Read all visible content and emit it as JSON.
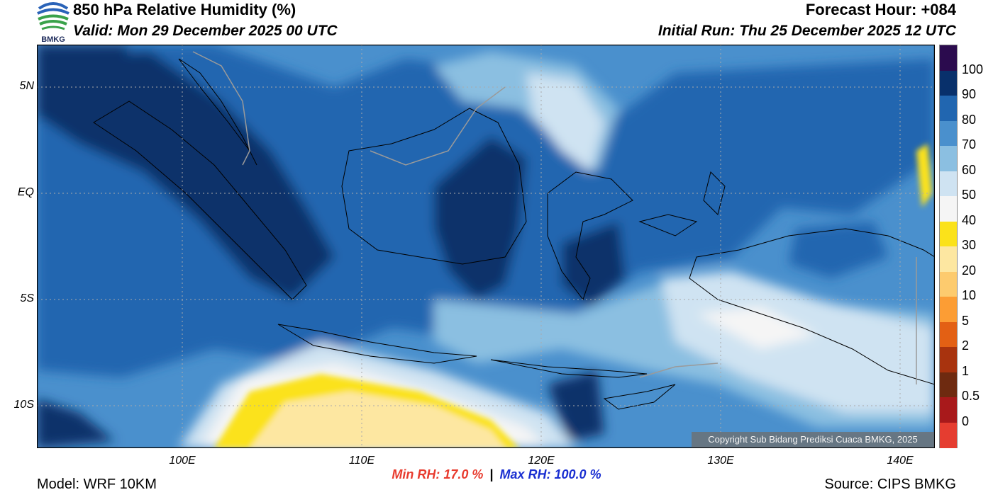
{
  "header": {
    "title": "850 hPa Relative Humidity (%)",
    "valid": "Valid: Mon 29 December 2025 00 UTC",
    "forecast_hour": "Forecast Hour: +084",
    "initial_run": "Initial Run: Thu 25 December 2025 12 UTC",
    "logo_text": "BMKG"
  },
  "map": {
    "lat_labels": [
      "5N",
      "EQ",
      "5S",
      "10S"
    ],
    "lon_labels": [
      "100E",
      "110E",
      "120E",
      "130E",
      "140E"
    ],
    "lat_values": [
      5,
      0,
      -5,
      -10
    ],
    "lon_values": [
      100,
      110,
      120,
      130,
      140
    ],
    "lon_range": [
      92,
      142
    ],
    "lat_range": [
      -12,
      7
    ],
    "copyright": "Copyright Sub Bidang Prediksi Cuaca BMKG, 2025"
  },
  "legend": {
    "labels": [
      "100",
      "90",
      "80",
      "70",
      "60",
      "50",
      "40",
      "30",
      "20",
      "10",
      "5",
      "2",
      "1",
      "0.5",
      "0"
    ],
    "colors": [
      "#2b0b4e",
      "#08306b",
      "#2166b0",
      "#4a90cd",
      "#8bbfe1",
      "#cfe3f2",
      "#f5f5f5",
      "#fbe21a",
      "#fde7a1",
      "#fdcb6e",
      "#fc9d34",
      "#e36014",
      "#a8330e",
      "#6e2a10",
      "#a8191b",
      "#e53d30"
    ]
  },
  "stats": {
    "min_rh": "Min RH:  17.0 %",
    "separator": "|",
    "max_rh": "Max RH: 100.0 %"
  },
  "footer": {
    "model": "Model: WRF 10KM",
    "source": "Source: CIPS BMKG"
  }
}
